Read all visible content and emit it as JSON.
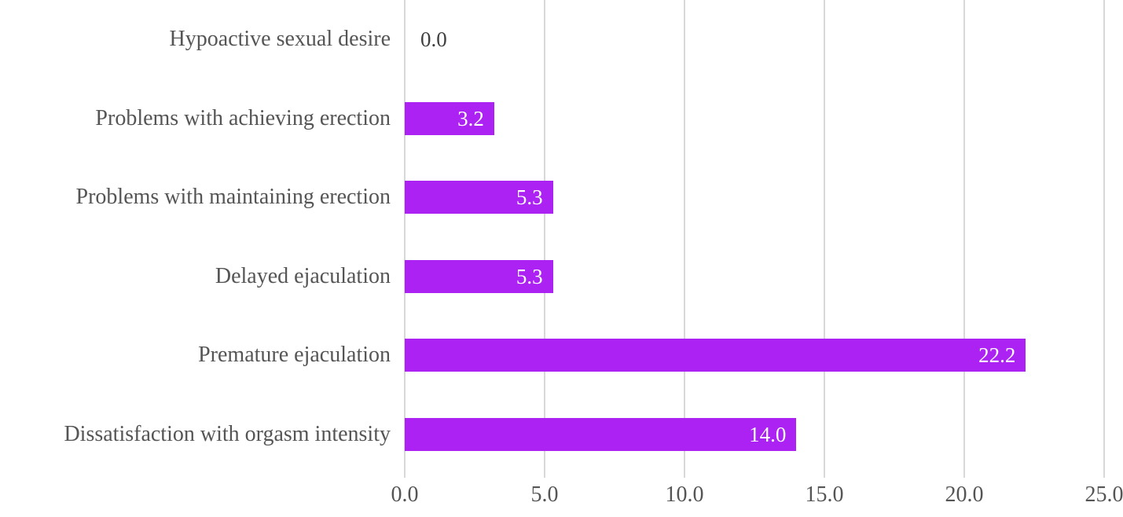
{
  "chart_data": {
    "type": "bar",
    "orientation": "horizontal",
    "title": "",
    "xlabel": "",
    "ylabel": "",
    "categories": [
      "Hypoactive sexual desire",
      "Problems with achieving erection",
      "Problems with maintaining erection",
      "Delayed ejaculation",
      "Premature ejaculation",
      "Dissatisfaction with orgasm intensity"
    ],
    "values": [
      0.0,
      3.2,
      5.3,
      5.3,
      22.2,
      14.0
    ],
    "value_labels": [
      "0.0",
      "3.2",
      "5.3",
      "5.3",
      "22.2",
      "14.0"
    ],
    "x_ticks": [
      "0.0",
      "5.0",
      "10.0",
      "15.0",
      "20.0",
      "25.0"
    ],
    "x_tick_values": [
      0,
      5,
      10,
      15,
      20,
      25
    ],
    "xlim": [
      0,
      25
    ],
    "grid": "vertical-gridlines-on",
    "legend": "none",
    "colors": {
      "bar": "#ab22f2",
      "gridline": "#d8d8d8",
      "category_text": "#555555",
      "axis_text": "#555555",
      "value_label_inside": "#ffffff",
      "value_label_outside": "#3f3f3f",
      "background": "#ffffff"
    }
  }
}
